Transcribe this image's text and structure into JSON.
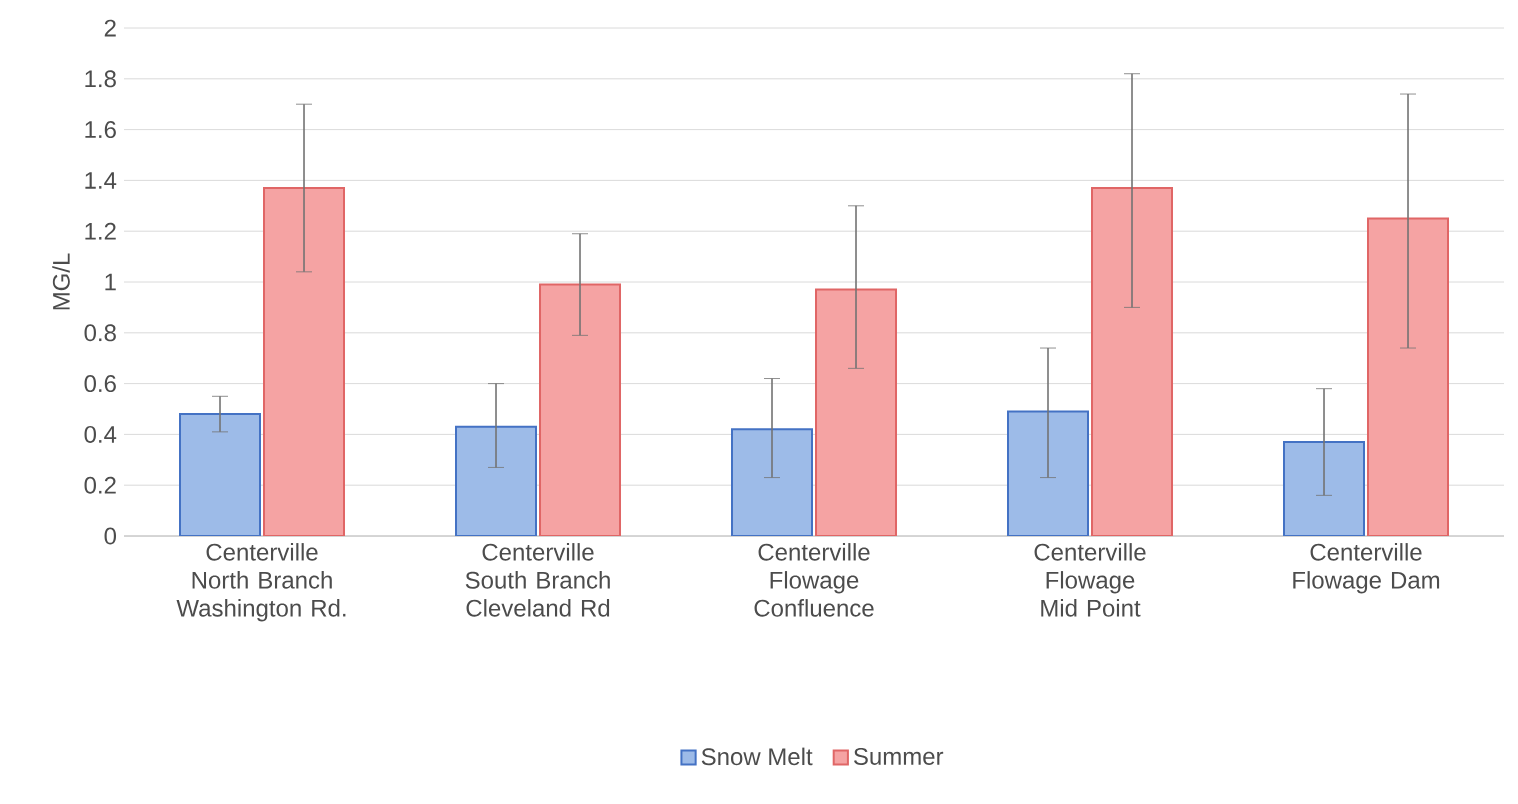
{
  "chart_data": {
    "type": "bar",
    "ylabel": "MG/L",
    "categories": [
      "Centerville North Branch Washington Rd.",
      "Centerville South Branch Cleveland Rd",
      "Centerville Flowage Confluence",
      "Centerville Flowage Mid Point",
      "Centerville Flowage Dam"
    ],
    "series": [
      {
        "name": "Snow Melt",
        "color": "#9dbbe8",
        "values": [
          0.48,
          0.43,
          0.42,
          0.49,
          0.37
        ],
        "errors": [
          [
            0.41,
            0.55
          ],
          [
            0.27,
            0.6
          ],
          [
            0.23,
            0.62
          ],
          [
            0.23,
            0.74
          ],
          [
            0.16,
            0.58
          ]
        ]
      },
      {
        "name": "Summer",
        "color": "#f5a3a3",
        "values": [
          1.37,
          0.99,
          0.97,
          1.37,
          1.25
        ],
        "errors": [
          [
            1.04,
            1.7
          ],
          [
            0.79,
            1.19
          ],
          [
            0.66,
            1.3
          ],
          [
            0.9,
            1.82
          ],
          [
            0.74,
            1.74
          ]
        ]
      }
    ],
    "ylim": [
      0,
      2
    ],
    "yticks": [
      0,
      0.2,
      0.4,
      0.6,
      0.8,
      1,
      1.2,
      1.4,
      1.6,
      1.8,
      2
    ],
    "grid": "y",
    "legend": "bottom"
  }
}
